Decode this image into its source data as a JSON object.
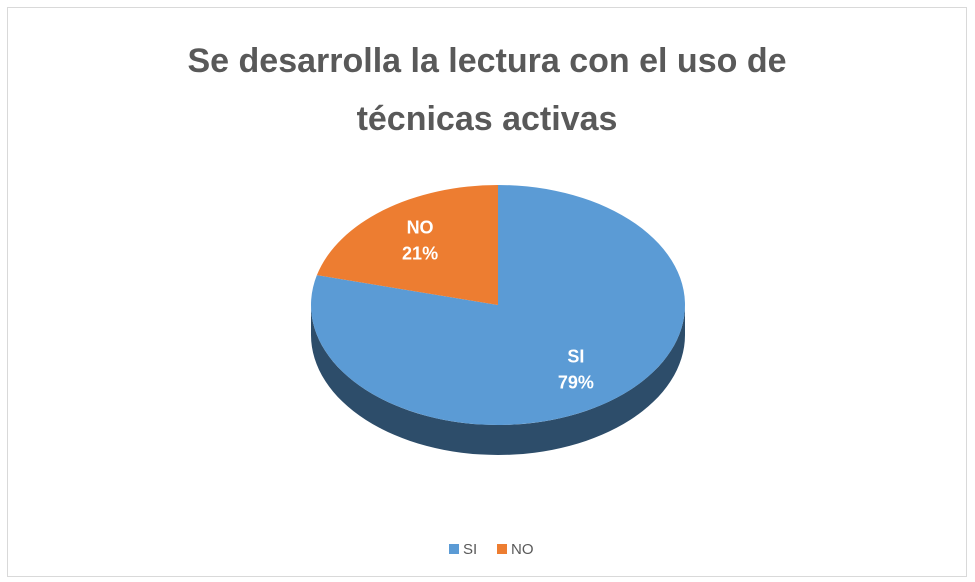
{
  "chart_data": {
    "type": "pie",
    "title": "Se desarrolla la lectura con el uso de técnicas activas",
    "categories": [
      "SI",
      "NO"
    ],
    "values": [
      79,
      21
    ],
    "value_labels": [
      "79%",
      "21%"
    ],
    "colors": [
      "#5b9bd5",
      "#ed7d31"
    ],
    "legend": "bottom"
  }
}
